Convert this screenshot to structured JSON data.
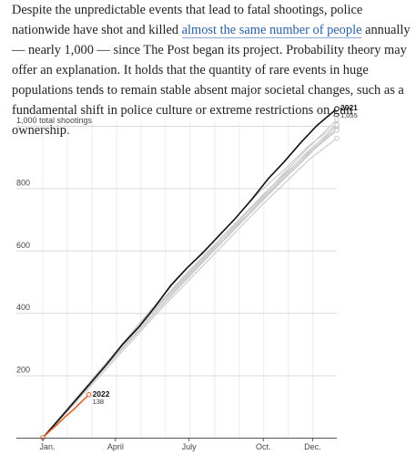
{
  "article": {
    "before_link": "Despite the unpredictable events that lead to fatal shootings, police nationwide have shot and killed ",
    "link_text": "almost the same number of people",
    "after_link": " annually — nearly 1,000 — since The Post began its project. Probability theory may offer an explanation. It holds that the quantity of rare events in huge populations tends to remain stable absent major societal changes, such as a fundamental shift in police culture or extreme restrictions on gun ownership."
  },
  "colors": {
    "current_year": "#111111",
    "partial_year": "#e0622a",
    "prior_years": "#c8c8c8",
    "grid": "#d9d9d9",
    "axis": "#555555"
  },
  "chart_data": {
    "type": "line",
    "x_axis": {
      "unit": "day of year",
      "range": [
        1,
        365
      ],
      "ticks": [
        {
          "day": 1,
          "label": "Jan."
        },
        {
          "day": 91,
          "label": "April"
        },
        {
          "day": 182,
          "label": "July"
        },
        {
          "day": 274,
          "label": "Oct."
        },
        {
          "day": 335,
          "label": "Dec."
        }
      ]
    },
    "y_axis": {
      "range": [
        0,
        1060
      ],
      "ticks": [
        {
          "value": 200,
          "label": "200"
        },
        {
          "value": 400,
          "label": "400"
        },
        {
          "value": 600,
          "label": "600"
        },
        {
          "value": 800,
          "label": "800"
        },
        {
          "value": 1000,
          "label": "1,000 total shootings"
        }
      ]
    },
    "grid": "vertical month lines and horizontal value lines",
    "series": [
      {
        "name": "2021",
        "value_label": "1,055",
        "highlight": "current",
        "points": [
          [
            1,
            0
          ],
          [
            20,
            55
          ],
          [
            40,
            115
          ],
          [
            60,
            175
          ],
          [
            80,
            235
          ],
          [
            100,
            300
          ],
          [
            120,
            355
          ],
          [
            140,
            420
          ],
          [
            160,
            490
          ],
          [
            180,
            545
          ],
          [
            200,
            595
          ],
          [
            220,
            650
          ],
          [
            240,
            705
          ],
          [
            260,
            765
          ],
          [
            280,
            830
          ],
          [
            300,
            885
          ],
          [
            320,
            945
          ],
          [
            340,
            1000
          ],
          [
            365,
            1055
          ]
        ]
      },
      {
        "name": "2022",
        "value_label": "138",
        "highlight": "partial",
        "points": [
          [
            1,
            0
          ],
          [
            10,
            22
          ],
          [
            20,
            45
          ],
          [
            30,
            70
          ],
          [
            40,
            92
          ],
          [
            50,
            118
          ],
          [
            58,
            138
          ]
        ]
      },
      {
        "highlight": "prior",
        "points": [
          [
            1,
            0
          ],
          [
            30,
            85
          ],
          [
            60,
            175
          ],
          [
            90,
            270
          ],
          [
            120,
            365
          ],
          [
            150,
            455
          ],
          [
            180,
            545
          ],
          [
            210,
            625
          ],
          [
            240,
            705
          ],
          [
            270,
            790
          ],
          [
            300,
            860
          ],
          [
            330,
            935
          ],
          [
            365,
            1005
          ]
        ]
      },
      {
        "highlight": "prior",
        "points": [
          [
            1,
            0
          ],
          [
            30,
            88
          ],
          [
            60,
            182
          ],
          [
            90,
            272
          ],
          [
            120,
            362
          ],
          [
            150,
            445
          ],
          [
            180,
            530
          ],
          [
            210,
            610
          ],
          [
            240,
            690
          ],
          [
            270,
            770
          ],
          [
            300,
            845
          ],
          [
            330,
            915
          ],
          [
            365,
            990
          ]
        ]
      },
      {
        "highlight": "prior",
        "points": [
          [
            1,
            0
          ],
          [
            30,
            82
          ],
          [
            60,
            170
          ],
          [
            90,
            260
          ],
          [
            120,
            345
          ],
          [
            150,
            430
          ],
          [
            180,
            515
          ],
          [
            210,
            595
          ],
          [
            240,
            675
          ],
          [
            270,
            760
          ],
          [
            300,
            840
          ],
          [
            330,
            920
          ],
          [
            365,
            1000
          ]
        ]
      },
      {
        "highlight": "prior",
        "points": [
          [
            1,
            0
          ],
          [
            30,
            90
          ],
          [
            60,
            180
          ],
          [
            90,
            268
          ],
          [
            120,
            355
          ],
          [
            150,
            440
          ],
          [
            180,
            525
          ],
          [
            210,
            605
          ],
          [
            240,
            680
          ],
          [
            270,
            755
          ],
          [
            300,
            835
          ],
          [
            330,
            910
          ],
          [
            365,
            985
          ]
        ]
      },
      {
        "highlight": "prior",
        "points": [
          [
            1,
            0
          ],
          [
            30,
            80
          ],
          [
            60,
            165
          ],
          [
            90,
            250
          ],
          [
            120,
            335
          ],
          [
            150,
            420
          ],
          [
            180,
            500
          ],
          [
            210,
            580
          ],
          [
            240,
            660
          ],
          [
            270,
            740
          ],
          [
            300,
            815
          ],
          [
            330,
            890
          ],
          [
            365,
            960
          ]
        ]
      },
      {
        "highlight": "prior",
        "points": [
          [
            1,
            0
          ],
          [
            30,
            86
          ],
          [
            60,
            178
          ],
          [
            90,
            265
          ],
          [
            120,
            352
          ],
          [
            150,
            438
          ],
          [
            180,
            520
          ],
          [
            210,
            600
          ],
          [
            240,
            685
          ],
          [
            270,
            765
          ],
          [
            300,
            850
          ],
          [
            330,
            930
          ],
          [
            365,
            1020
          ]
        ]
      },
      {
        "highlight": "prior",
        "points": [
          [
            1,
            0
          ],
          [
            30,
            84
          ],
          [
            60,
            172
          ],
          [
            90,
            258
          ],
          [
            120,
            342
          ],
          [
            150,
            428
          ],
          [
            180,
            510
          ],
          [
            210,
            592
          ],
          [
            240,
            672
          ],
          [
            270,
            752
          ],
          [
            300,
            830
          ],
          [
            330,
            905
          ],
          [
            365,
            1003
          ]
        ]
      }
    ]
  }
}
